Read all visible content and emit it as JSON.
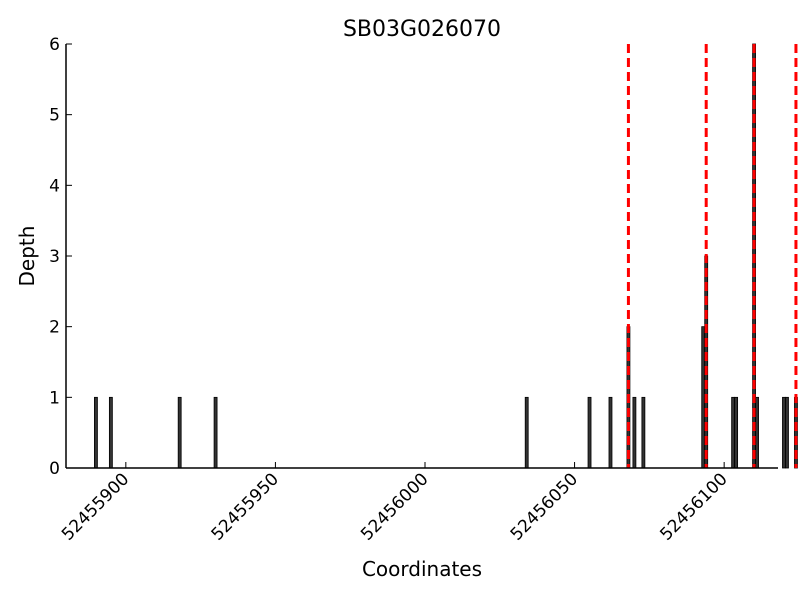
{
  "chart_data": {
    "type": "bar",
    "title": "SB03G026070",
    "xlabel": "Coordinates",
    "ylabel": "Depth",
    "xlim": [
      52455880,
      52456118
    ],
    "ylim": [
      0,
      6
    ],
    "x_ticks": [
      52455900,
      52455950,
      52456000,
      52456050,
      52456100
    ],
    "y_ticks": [
      0,
      1,
      2,
      3,
      4,
      5,
      6
    ],
    "bar_color": "#333333",
    "bar_edge_color": "#000000",
    "bars": [
      {
        "x": 52455890,
        "depth": 1
      },
      {
        "x": 52455895,
        "depth": 1
      },
      {
        "x": 52455918,
        "depth": 1
      },
      {
        "x": 52455930,
        "depth": 1
      },
      {
        "x": 52456034,
        "depth": 1
      },
      {
        "x": 52456055,
        "depth": 1
      },
      {
        "x": 52456062,
        "depth": 1
      },
      {
        "x": 52456068,
        "depth": 2
      },
      {
        "x": 52456070,
        "depth": 1
      },
      {
        "x": 52456073,
        "depth": 1
      },
      {
        "x": 52456093,
        "depth": 2
      },
      {
        "x": 52456094,
        "depth": 3
      },
      {
        "x": 52456103,
        "depth": 1
      },
      {
        "x": 52456104,
        "depth": 1
      },
      {
        "x": 52456110,
        "depth": 6
      },
      {
        "x": 52456111,
        "depth": 1
      },
      {
        "x": 52456120,
        "depth": 1
      },
      {
        "x": 52456121,
        "depth": 1
      },
      {
        "x": 52456124,
        "depth": 1
      }
    ],
    "reference_lines": {
      "color": "#ff0000",
      "style": "dashed",
      "x": [
        52456068,
        52456094,
        52456110,
        52456124
      ]
    }
  }
}
